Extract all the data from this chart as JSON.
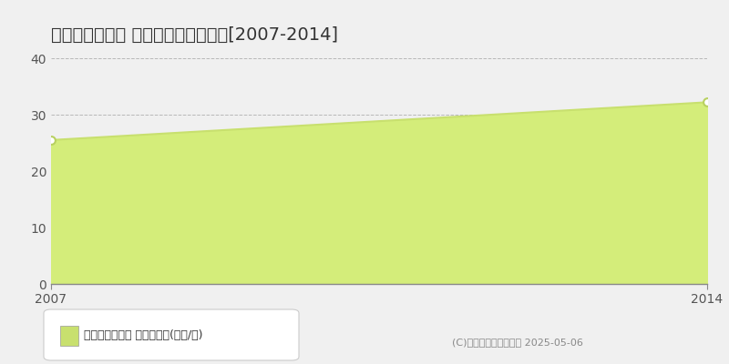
{
  "title": "白山市八ツ矢町 マンション価格推移[2007-2014]",
  "x_values": [
    2007,
    2014
  ],
  "y_values": [
    25.5,
    32.2
  ],
  "x_min": 2007,
  "x_max": 2014,
  "y_min": 0,
  "y_max": 40,
  "y_ticks": [
    0,
    10,
    20,
    30,
    40
  ],
  "line_color": "#c8e06e",
  "fill_color": "#d4ed7a",
  "fill_alpha": 1.0,
  "marker_color": "white",
  "marker_edge_color": "#b8d060",
  "background_color": "#f0f0f0",
  "grid_color": "#aaaaaa",
  "legend_label": "マンション価格 平均坪単価(万円/坪)",
  "legend_marker_color": "#c8e06e",
  "copyright_text": "(C)土地価格ドットコム 2025-05-06",
  "title_fontsize": 14,
  "tick_fontsize": 10,
  "legend_fontsize": 9,
  "copyright_fontsize": 8
}
